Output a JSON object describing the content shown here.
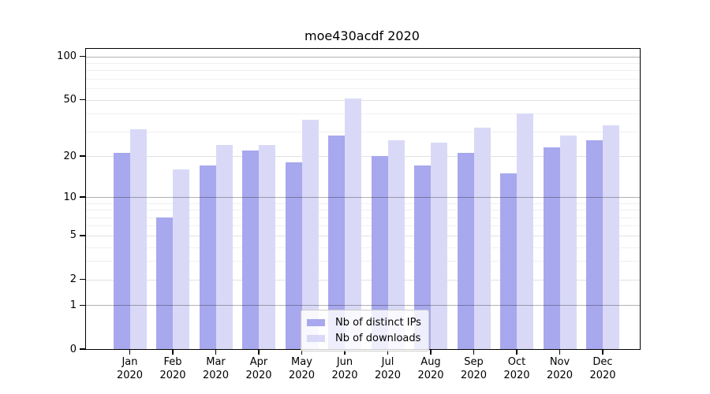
{
  "chart_data": {
    "type": "bar",
    "title": "moe430acdf 2020",
    "categories": [
      "Jan",
      "Feb",
      "Mar",
      "Apr",
      "May",
      "Jun",
      "Jul",
      "Aug",
      "Sep",
      "Oct",
      "Nov",
      "Dec"
    ],
    "category_year_label": "2020",
    "series": [
      {
        "name": "Nb of distinct IPs",
        "color": "#a8a8ee",
        "values": [
          21,
          7,
          17,
          22,
          18,
          28,
          20,
          17,
          21,
          15,
          23,
          26
        ]
      },
      {
        "name": "Nb of downloads",
        "color": "#d9d9f7",
        "values": [
          31,
          16,
          24,
          24,
          36,
          51,
          26,
          25,
          32,
          40,
          28,
          33
        ]
      }
    ],
    "yscale": "log1p",
    "ylim": [
      0,
      113
    ],
    "yticks": [
      0,
      1,
      2,
      5,
      10,
      20,
      50,
      100
    ],
    "major_gridlines": [
      1,
      10,
      100
    ],
    "mid_gridlines": [
      2,
      5,
      20,
      50
    ],
    "minor_gridlines": [
      3,
      4,
      6,
      7,
      8,
      9,
      30,
      40,
      60,
      70,
      80,
      90
    ],
    "grid": "on",
    "legend_position": "lower center",
    "axis_color": "#000000",
    "background_color": "#ffffff"
  }
}
